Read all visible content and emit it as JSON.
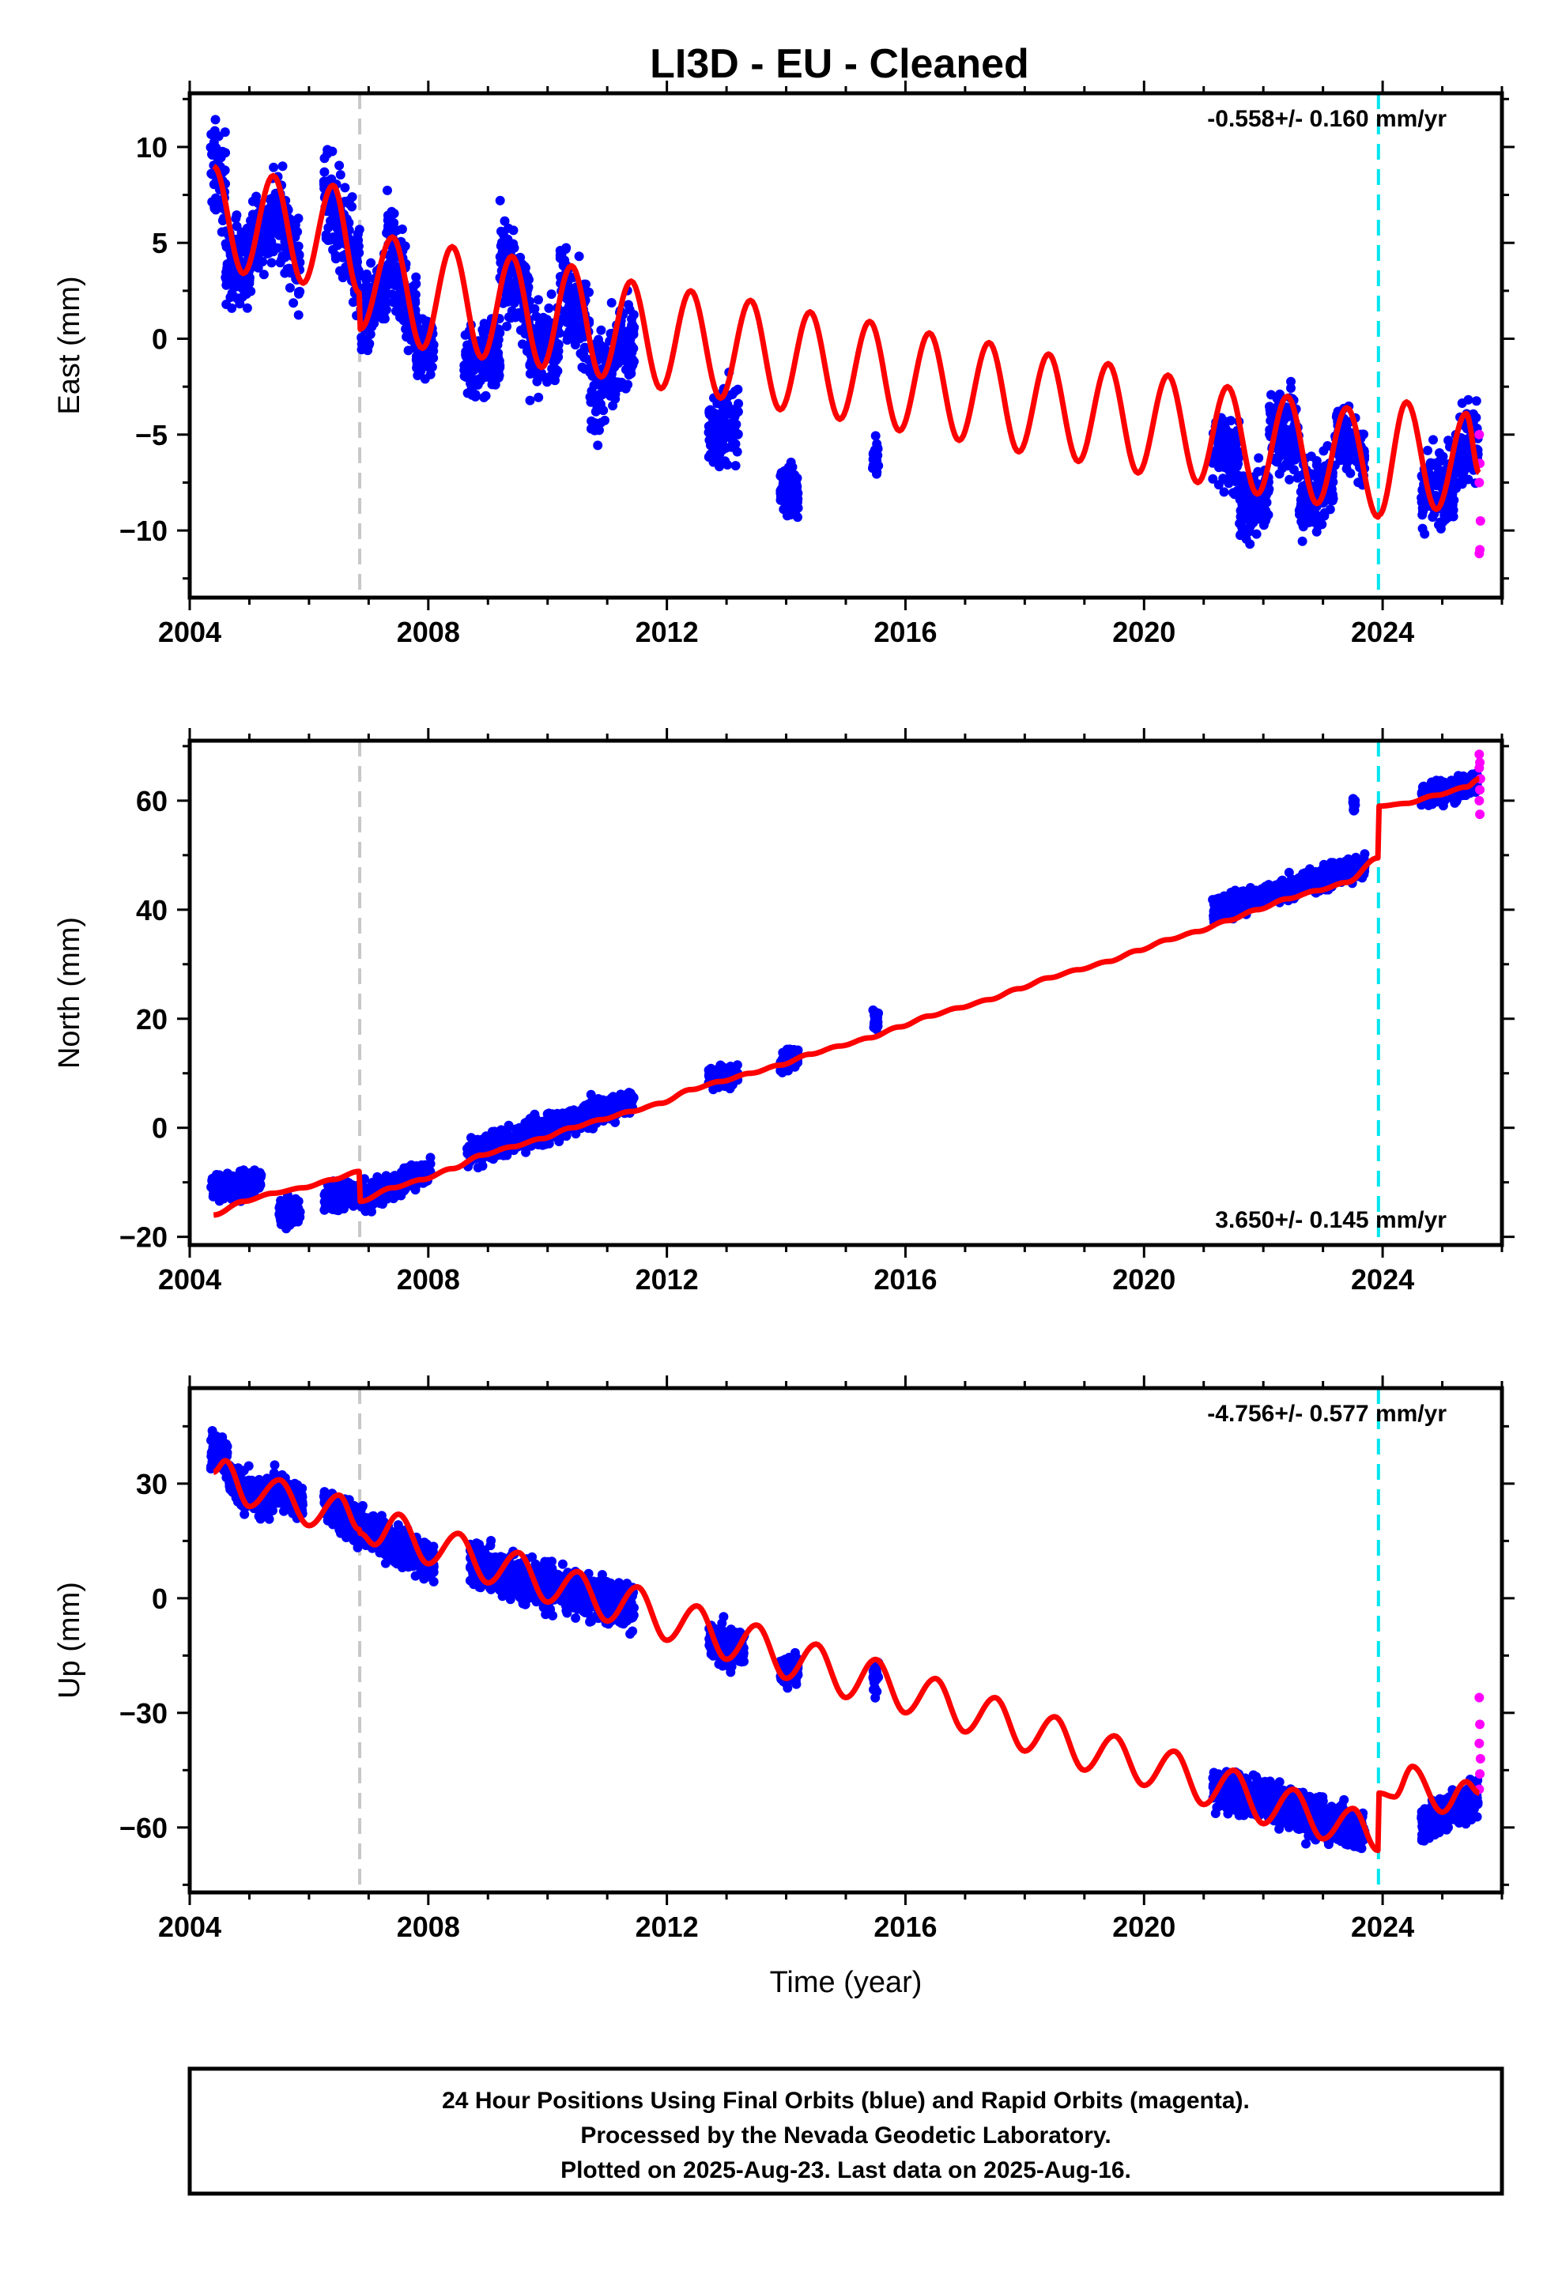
{
  "title": "LI3D  - EU - Cleaned",
  "colors": {
    "final_orbits": "#0000ff",
    "rapid_orbits": "#ff00ff",
    "model": "#ff0000",
    "equipment_change": "#c8c8c8",
    "offset_marker": "#00e5ee",
    "axes": "#000000"
  },
  "footer": {
    "lines": [
      "24 Hour Positions Using Final Orbits (blue) and Rapid Orbits (magenta).",
      "Processed by the Nevada Geodetic Laboratory.",
      "Plotted on 2025-Aug-23. Last data on 2025-Aug-16."
    ]
  },
  "chart_data": [
    {
      "type": "scatter",
      "component": "east",
      "ylabel": "East (mm)",
      "xlabel": "",
      "rate_label": "-0.558+/- 0.160 mm/yr",
      "rate_placement": "top-right",
      "xlim": [
        2004,
        2026
      ],
      "ylim": [
        -13.5,
        12.8
      ],
      "xticks": [
        2004,
        2008,
        2012,
        2016,
        2020,
        2024
      ],
      "yticks": [
        -10,
        -5,
        0,
        5,
        10
      ],
      "tick_labels": [
        "−10",
        "−5",
        "0",
        "5",
        "10"
      ],
      "vertical_lines": [
        {
          "x": 2006.85,
          "style": "dashed",
          "color": "#c8c8c8"
        },
        {
          "x": 2023.93,
          "style": "dashed",
          "color": "#00e5ee"
        }
      ],
      "model": {
        "series": "fit",
        "x": [
          2004.4,
          2004.9,
          2005.4,
          2005.9,
          2006.4,
          2006.84,
          2006.86,
          2007.4,
          2007.9,
          2008.4,
          2008.9,
          2009.4,
          2009.9,
          2010.4,
          2010.9,
          2011.4,
          2011.9,
          2012.4,
          2012.9,
          2013.4,
          2013.9,
          2014.4,
          2014.9,
          2015.4,
          2015.9,
          2016.4,
          2016.9,
          2017.4,
          2017.9,
          2018.4,
          2018.9,
          2019.4,
          2019.9,
          2020.4,
          2020.9,
          2021.4,
          2021.9,
          2022.4,
          2022.9,
          2023.4,
          2023.92,
          2023.94,
          2024.4,
          2024.9,
          2025.4,
          2025.62
        ],
        "y": [
          9.0,
          3.4,
          8.5,
          2.9,
          8.0,
          2.4,
          0.5,
          5.3,
          -0.5,
          4.8,
          -1.0,
          4.3,
          -1.5,
          3.8,
          -2.0,
          3.0,
          -2.6,
          2.5,
          -3.1,
          2.0,
          -3.7,
          1.4,
          -4.2,
          0.9,
          -4.8,
          0.3,
          -5.3,
          -0.2,
          -5.9,
          -0.8,
          -6.4,
          -1.3,
          -7.0,
          -1.9,
          -7.5,
          -2.5,
          -8.1,
          -3.0,
          -8.6,
          -3.6,
          -9.3,
          -9.2,
          -3.3,
          -8.9,
          -3.9,
          -7.0
        ]
      },
      "final_clusters": [
        {
          "x_range": [
            2004.35,
            2004.6
          ],
          "y_center": 8.5,
          "spread": 2.3,
          "trend": -1.0
        },
        {
          "x_range": [
            2004.6,
            2005.0
          ],
          "y_center": 4.0,
          "spread": 2.0,
          "trend": 0.0
        },
        {
          "x_range": [
            2005.0,
            2005.4
          ],
          "y_center": 5.5,
          "spread": 2.0,
          "trend": 1.5
        },
        {
          "x_range": [
            2005.4,
            2005.85
          ],
          "y_center": 5.5,
          "spread": 2.2,
          "trend": -3.0
        },
        {
          "x_range": [
            2006.25,
            2006.85
          ],
          "y_center": 5.5,
          "spread": 2.5,
          "trend": -4.0
        },
        {
          "x_range": [
            2006.86,
            2007.3
          ],
          "y_center": 1.8,
          "spread": 1.8,
          "trend": 2.0
        },
        {
          "x_range": [
            2007.3,
            2007.8
          ],
          "y_center": 3.0,
          "spread": 2.2,
          "trend": -4.0
        },
        {
          "x_range": [
            2007.8,
            2008.1
          ],
          "y_center": -0.5,
          "spread": 1.3,
          "trend": 0.0
        },
        {
          "x_range": [
            2008.6,
            2009.2
          ],
          "y_center": -1.0,
          "spread": 2.0,
          "trend": 1.0
        },
        {
          "x_range": [
            2009.2,
            2009.7
          ],
          "y_center": 3.0,
          "spread": 2.3,
          "trend": -3.0
        },
        {
          "x_range": [
            2009.7,
            2010.2
          ],
          "y_center": -0.5,
          "spread": 1.8,
          "trend": 1.0
        },
        {
          "x_range": [
            2010.2,
            2010.7
          ],
          "y_center": 2.0,
          "spread": 2.2,
          "trend": -3.0
        },
        {
          "x_range": [
            2010.7,
            2011.45
          ],
          "y_center": -1.5,
          "spread": 2.3,
          "trend": 3.0
        },
        {
          "x_range": [
            2012.7,
            2013.2
          ],
          "y_center": -4.5,
          "spread": 1.8,
          "trend": 0.5
        },
        {
          "x_range": [
            2013.9,
            2014.2
          ],
          "y_center": -8.0,
          "spread": 1.5,
          "trend": 0.0
        },
        {
          "x_range": [
            2015.45,
            2015.55
          ],
          "y_center": -6.0,
          "spread": 0.8,
          "trend": 0.0
        },
        {
          "x_range": [
            2021.15,
            2021.6
          ],
          "y_center": -6.0,
          "spread": 1.8,
          "trend": -1.0
        },
        {
          "x_range": [
            2021.6,
            2022.1
          ],
          "y_center": -8.5,
          "spread": 1.5,
          "trend": 1.0
        },
        {
          "x_range": [
            2022.1,
            2022.6
          ],
          "y_center": -5.0,
          "spread": 2.0,
          "trend": -1.0
        },
        {
          "x_range": [
            2022.6,
            2023.2
          ],
          "y_center": -8.0,
          "spread": 1.8,
          "trend": 1.0
        },
        {
          "x_range": [
            2023.2,
            2023.7
          ],
          "y_center": -5.5,
          "spread": 1.5,
          "trend": -1.0
        },
        {
          "x_range": [
            2024.65,
            2025.2
          ],
          "y_center": -8.0,
          "spread": 1.8,
          "trend": 0.5
        },
        {
          "x_range": [
            2025.2,
            2025.6
          ],
          "y_center": -5.5,
          "spread": 2.0,
          "trend": 1.0
        }
      ],
      "rapid_points": {
        "x": [
          2025.62,
          2025.63,
          2025.62,
          2025.64,
          2025.63,
          2025.62
        ],
        "y": [
          -5.0,
          -6.5,
          -7.5,
          -9.5,
          -11.0,
          -11.2
        ]
      }
    },
    {
      "type": "scatter",
      "component": "north",
      "ylabel": "North (mm)",
      "xlabel": "",
      "rate_label": "3.650+/- 0.145 mm/yr",
      "rate_placement": "bottom-right",
      "xlim": [
        2004,
        2026
      ],
      "ylim": [
        -21.5,
        71
      ],
      "xticks": [
        2004,
        2008,
        2012,
        2016,
        2020,
        2024
      ],
      "yticks": [
        -20,
        0,
        20,
        40,
        60
      ],
      "tick_labels": [
        "−20",
        "0",
        "20",
        "40",
        "60"
      ],
      "vertical_lines": [
        {
          "x": 2006.85,
          "style": "dashed",
          "color": "#c8c8c8"
        },
        {
          "x": 2023.93,
          "style": "dashed",
          "color": "#00e5ee"
        }
      ],
      "model": {
        "series": "fit",
        "x": [
          2004.4,
          2004.9,
          2005.4,
          2005.9,
          2006.4,
          2006.84,
          2006.86,
          2007.4,
          2007.9,
          2008.4,
          2008.9,
          2009.4,
          2009.9,
          2010.4,
          2010.9,
          2011.4,
          2011.9,
          2012.4,
          2012.9,
          2013.4,
          2013.9,
          2014.4,
          2014.9,
          2015.4,
          2015.9,
          2016.4,
          2016.9,
          2017.4,
          2017.9,
          2018.4,
          2018.9,
          2019.4,
          2019.9,
          2020.4,
          2020.9,
          2021.4,
          2021.9,
          2022.4,
          2022.9,
          2023.4,
          2023.92,
          2023.94,
          2024.4,
          2024.9,
          2025.4,
          2025.62
        ],
        "y": [
          -16.0,
          -13.5,
          -12.0,
          -11.0,
          -9.5,
          -8.0,
          -13.5,
          -11.0,
          -9.5,
          -7.5,
          -5.0,
          -3.5,
          -2.0,
          0.0,
          1.5,
          3.0,
          4.5,
          7.0,
          8.5,
          10.0,
          11.5,
          13.5,
          15.0,
          16.5,
          18.5,
          20.5,
          22.0,
          23.5,
          25.5,
          27.5,
          29.0,
          30.5,
          32.5,
          34.5,
          36.0,
          38.0,
          40.0,
          42.0,
          43.5,
          45.0,
          49.5,
          59.0,
          59.5,
          61.0,
          62.5,
          64.0
        ]
      },
      "final_clusters": [
        {
          "x_range": [
            2004.35,
            2005.2
          ],
          "y_center": -10.5,
          "spread": 2.2,
          "trend": 1.0
        },
        {
          "x_range": [
            2005.5,
            2005.85
          ],
          "y_center": -15.5,
          "spread": 2.5,
          "trend": 0.0
        },
        {
          "x_range": [
            2006.25,
            2006.85
          ],
          "y_center": -12.5,
          "spread": 2.3,
          "trend": 1.0
        },
        {
          "x_range": [
            2006.86,
            2008.05
          ],
          "y_center": -10.5,
          "spread": 2.2,
          "trend": 5.0
        },
        {
          "x_range": [
            2008.65,
            2011.45
          ],
          "y_center": 0.0,
          "spread": 2.3,
          "trend": 10.0
        },
        {
          "x_range": [
            2012.7,
            2013.2
          ],
          "y_center": 9.5,
          "spread": 2.0,
          "trend": 1.0
        },
        {
          "x_range": [
            2013.9,
            2014.2
          ],
          "y_center": 12.5,
          "spread": 1.8,
          "trend": 0.5
        },
        {
          "x_range": [
            2015.45,
            2015.55
          ],
          "y_center": 20.0,
          "spread": 2.0,
          "trend": 0.0
        },
        {
          "x_range": [
            2021.15,
            2023.7
          ],
          "y_center": 44.0,
          "spread": 2.0,
          "trend": 8.0
        },
        {
          "x_range": [
            2023.5,
            2023.55
          ],
          "y_center": 59.5,
          "spread": 1.2,
          "trend": 0.0
        },
        {
          "x_range": [
            2024.65,
            2025.6
          ],
          "y_center": 62.0,
          "spread": 2.0,
          "trend": 3.0
        }
      ],
      "rapid_points": {
        "x": [
          2025.62,
          2025.63,
          2025.62,
          2025.64,
          2025.63,
          2025.62,
          2025.63
        ],
        "y": [
          68.5,
          67.0,
          66.0,
          64.0,
          62.0,
          60.0,
          57.5
        ]
      }
    },
    {
      "type": "scatter",
      "component": "up",
      "ylabel": "Up (mm)",
      "xlabel": "Time (year)",
      "rate_label": "-4.756+/- 0.577 mm/yr",
      "rate_placement": "top-right",
      "xlim": [
        2004,
        2026
      ],
      "ylim": [
        -77,
        55
      ],
      "xticks": [
        2004,
        2008,
        2012,
        2016,
        2020,
        2024
      ],
      "yticks": [
        -60,
        -30,
        0,
        30
      ],
      "tick_labels": [
        "−60",
        "−30",
        "0",
        "30"
      ],
      "vertical_lines": [
        {
          "x": 2006.85,
          "style": "dashed",
          "color": "#c8c8c8"
        },
        {
          "x": 2023.93,
          "style": "dashed",
          "color": "#00e5ee"
        }
      ],
      "model": {
        "series": "fit",
        "x": [
          2004.4,
          2004.6,
          2005.0,
          2005.5,
          2006.0,
          2006.5,
          2006.84,
          2006.86,
          2007.1,
          2007.5,
          2008.0,
          2008.5,
          2009.0,
          2009.5,
          2010.0,
          2010.5,
          2011.0,
          2011.5,
          2012.0,
          2012.5,
          2013.0,
          2013.5,
          2014.0,
          2014.5,
          2015.0,
          2015.5,
          2016.0,
          2016.5,
          2017.0,
          2017.5,
          2018.0,
          2018.5,
          2019.0,
          2019.5,
          2020.0,
          2020.5,
          2021.0,
          2021.5,
          2022.0,
          2022.5,
          2023.0,
          2023.5,
          2023.92,
          2023.94,
          2024.2,
          2024.5,
          2025.0,
          2025.4,
          2025.62
        ],
        "y": [
          33.0,
          36.0,
          24.0,
          31.0,
          19.0,
          27.0,
          18.0,
          17.0,
          14.0,
          22.0,
          9.0,
          17.0,
          4.0,
          12.0,
          -1.0,
          7.0,
          -6.0,
          3.0,
          -11.0,
          -2.0,
          -16.0,
          -7.0,
          -21.0,
          -12.0,
          -26.0,
          -16.0,
          -30.0,
          -21.0,
          -35.0,
          -26.0,
          -40.0,
          -31.0,
          -45.0,
          -36.0,
          -49.0,
          -40.0,
          -54.0,
          -45.0,
          -59.0,
          -50.0,
          -63.0,
          -55.0,
          -66.0,
          -51.0,
          -52.0,
          -44.0,
          -56.0,
          -48.0,
          -51.0
        ]
      },
      "final_clusters": [
        {
          "x_range": [
            2004.35,
            2004.65
          ],
          "y_center": 38.0,
          "spread": 4.5,
          "trend": -3.0
        },
        {
          "x_range": [
            2004.65,
            2005.4
          ],
          "y_center": 28.0,
          "spread": 4.5,
          "trend": -5.0
        },
        {
          "x_range": [
            2005.4,
            2005.9
          ],
          "y_center": 27.0,
          "spread": 4.5,
          "trend": -6.0
        },
        {
          "x_range": [
            2006.25,
            2006.85
          ],
          "y_center": 22.0,
          "spread": 5.0,
          "trend": -7.0
        },
        {
          "x_range": [
            2006.86,
            2008.1
          ],
          "y_center": 14.0,
          "spread": 5.0,
          "trend": -10.0
        },
        {
          "x_range": [
            2008.7,
            2011.45
          ],
          "y_center": 3.0,
          "spread": 5.5,
          "trend": -12.0
        },
        {
          "x_range": [
            2012.7,
            2013.3
          ],
          "y_center": -12.0,
          "spread": 5.0,
          "trend": -2.0
        },
        {
          "x_range": [
            2013.9,
            2014.2
          ],
          "y_center": -19.0,
          "spread": 4.0,
          "trend": 0.0
        },
        {
          "x_range": [
            2015.45,
            2015.55
          ],
          "y_center": -20.0,
          "spread": 5.0,
          "trend": 0.0
        },
        {
          "x_range": [
            2021.15,
            2023.7
          ],
          "y_center": -55.0,
          "spread": 5.0,
          "trend": -12.0
        },
        {
          "x_range": [
            2024.65,
            2025.6
          ],
          "y_center": -56.0,
          "spread": 4.5,
          "trend": 6.0
        }
      ],
      "rapid_points": {
        "x": [
          2025.62,
          2025.63,
          2025.62,
          2025.64,
          2025.63,
          2025.62
        ],
        "y": [
          -26.0,
          -33.0,
          -38.0,
          -42.0,
          -46.0,
          -50.0
        ]
      }
    }
  ]
}
